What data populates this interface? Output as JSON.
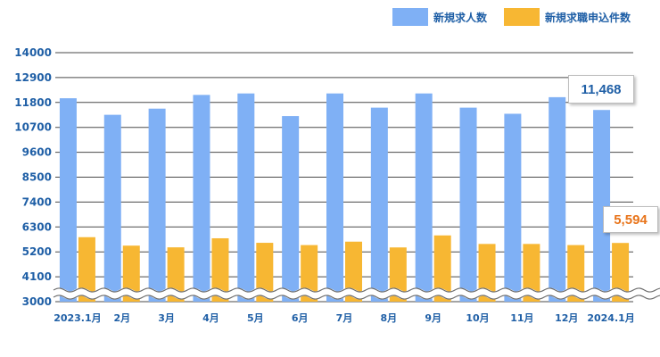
{
  "colors": {
    "series_1": "#7fb0f5",
    "series_2": "#f7b733",
    "axis_text": "#1f5fa6",
    "callout_1": "#1f5fa6",
    "callout_2": "#e8741a"
  },
  "callouts": {
    "series_1_last": "11,468",
    "series_2_last": "5,594"
  },
  "chart_data": {
    "type": "bar",
    "categories": [
      "2023.1月",
      "2月",
      "3月",
      "4月",
      "5月",
      "6月",
      "7月",
      "8月",
      "9月",
      "10月",
      "11月",
      "12月",
      "2024.1月"
    ],
    "series": [
      {
        "name": "新規求人数",
        "values": [
          11986,
          11255,
          11527,
          12133,
          12198,
          11198,
          12198,
          11571,
          12198,
          11571,
          11300,
          12033,
          11468
        ]
      },
      {
        "name": "新規求職申込件数",
        "values": [
          5849,
          5475,
          5400,
          5800,
          5600,
          5500,
          5651,
          5396,
          5927,
          5550,
          5550,
          5500,
          5594
        ]
      }
    ],
    "yticks": [
      3000,
      4100,
      5200,
      6300,
      7400,
      8500,
      9600,
      10700,
      11800,
      12900,
      14000
    ],
    "ylim": [
      3000,
      14000
    ],
    "axis_break": true,
    "legend_position": "top-right",
    "grid": true,
    "title": "",
    "xlabel": "",
    "ylabel": ""
  }
}
